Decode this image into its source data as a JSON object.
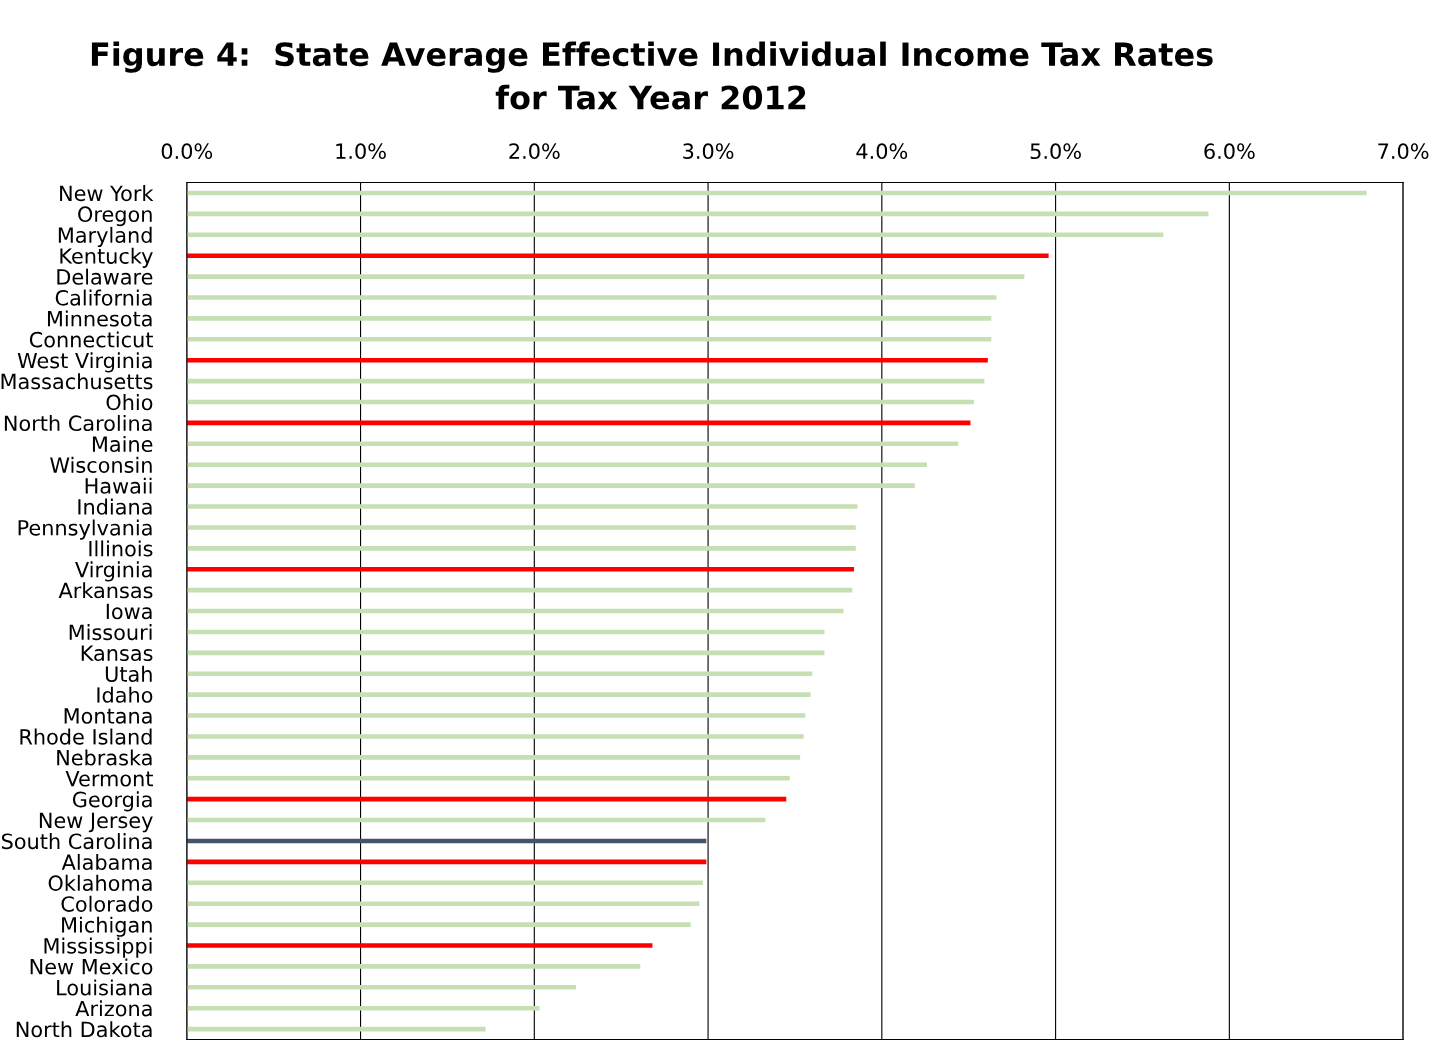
{
  "chart_data": {
    "type": "bar",
    "orientation": "horizontal",
    "title": "Figure 4:  State Average Effective Individual Income Tax Rates\nfor Tax Year 2012",
    "categories": [
      "New York",
      "Oregon",
      "Maryland",
      "Kentucky",
      "Delaware",
      "California",
      "Minnesota",
      "Connecticut",
      "West Virginia",
      "Massachusetts",
      "Ohio",
      "North Carolina",
      "Maine",
      "Wisconsin",
      "Hawaii",
      "Indiana",
      "Pennsylvania",
      "Illinois",
      "Virginia",
      "Arkansas",
      "Iowa",
      "Missouri",
      "Kansas",
      "Utah",
      "Idaho",
      "Montana",
      "Rhode Island",
      "Nebraska",
      "Vermont",
      "Georgia",
      "New Jersey",
      "South Carolina",
      "Alabama",
      "Oklahoma",
      "Colorado",
      "Michigan",
      "Mississippi",
      "New Mexico",
      "Louisiana",
      "Arizona",
      "North Dakota"
    ],
    "values": [
      6.79,
      5.88,
      5.62,
      4.96,
      4.82,
      4.66,
      4.63,
      4.63,
      4.61,
      4.59,
      4.53,
      4.51,
      4.44,
      4.26,
      4.19,
      3.86,
      3.85,
      3.85,
      3.84,
      3.83,
      3.78,
      3.67,
      3.67,
      3.6,
      3.59,
      3.56,
      3.55,
      3.53,
      3.47,
      3.45,
      3.33,
      2.99,
      2.99,
      2.97,
      2.95,
      2.9,
      2.68,
      2.61,
      2.24,
      2.03,
      1.72
    ],
    "colors": [
      "#c6e0b4",
      "#c6e0b4",
      "#c6e0b4",
      "#ff0000",
      "#c6e0b4",
      "#c6e0b4",
      "#c6e0b4",
      "#c6e0b4",
      "#ff0000",
      "#c6e0b4",
      "#c6e0b4",
      "#ff0000",
      "#c6e0b4",
      "#c6e0b4",
      "#c6e0b4",
      "#c6e0b4",
      "#c6e0b4",
      "#c6e0b4",
      "#ff0000",
      "#c6e0b4",
      "#c6e0b4",
      "#c6e0b4",
      "#c6e0b4",
      "#c6e0b4",
      "#c6e0b4",
      "#c6e0b4",
      "#c6e0b4",
      "#c6e0b4",
      "#c6e0b4",
      "#ff0000",
      "#c6e0b4",
      "#44546a",
      "#ff0000",
      "#c6e0b4",
      "#c6e0b4",
      "#c6e0b4",
      "#ff0000",
      "#c6e0b4",
      "#c6e0b4",
      "#c6e0b4",
      "#c6e0b4"
    ],
    "xlim": [
      0,
      7
    ],
    "xticks": [
      {
        "value": 0,
        "label": "0.0%"
      },
      {
        "value": 1,
        "label": "1.0%"
      },
      {
        "value": 2,
        "label": "2.0%"
      },
      {
        "value": 3,
        "label": "3.0%"
      },
      {
        "value": 4,
        "label": "4.0%"
      },
      {
        "value": 5,
        "label": "5.0%"
      },
      {
        "value": 6,
        "label": "6.0%"
      },
      {
        "value": 7,
        "label": "7.0%"
      }
    ],
    "grid": "x",
    "legend": false
  }
}
